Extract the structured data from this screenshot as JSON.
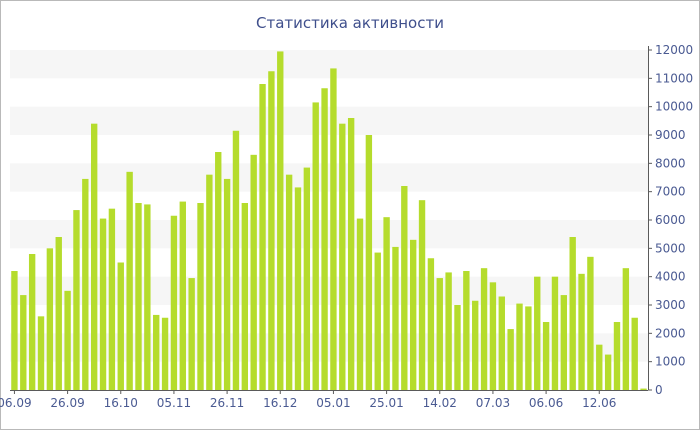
{
  "chart_data": {
    "type": "bar",
    "title": "Статистика активности",
    "xlabel": "",
    "ylabel": "",
    "ylim": [
      0,
      12000
    ],
    "y_ticks": [
      0,
      1000,
      2000,
      3000,
      4000,
      5000,
      6000,
      7000,
      8000,
      9000,
      10000,
      11000,
      12000
    ],
    "y_axis_side": "right",
    "grid": "alternating horizontal bands",
    "bar_color": "#b5dc2c",
    "band_color": "#f6f6f6",
    "text_color": "#4a5a92",
    "x_tick_labels": [
      {
        "index": 0,
        "label": "06.09"
      },
      {
        "index": 6,
        "label": "26.09"
      },
      {
        "index": 12,
        "label": "16.10"
      },
      {
        "index": 18,
        "label": "05.11"
      },
      {
        "index": 24,
        "label": "26.11"
      },
      {
        "index": 30,
        "label": "16.12"
      },
      {
        "index": 36,
        "label": "05.01"
      },
      {
        "index": 42,
        "label": "25.01"
      },
      {
        "index": 48,
        "label": "14.02"
      },
      {
        "index": 54,
        "label": "07.03"
      },
      {
        "index": 60,
        "label": "06.06"
      },
      {
        "index": 66,
        "label": "12.06"
      }
    ],
    "values": [
      4200,
      3350,
      4800,
      2600,
      5000,
      5400,
      3500,
      6350,
      7450,
      9400,
      6050,
      6400,
      4500,
      7700,
      6600,
      6550,
      2650,
      2550,
      6150,
      6650,
      3950,
      6600,
      7600,
      8400,
      7450,
      9150,
      6600,
      8300,
      10800,
      11250,
      11950,
      7600,
      7150,
      7850,
      10150,
      10650,
      11350,
      9400,
      9600,
      6050,
      9000,
      4850,
      6100,
      5050,
      7200,
      5300,
      6700,
      4650,
      3950,
      4150,
      3000,
      4200,
      3150,
      4300,
      3800,
      3300,
      2150,
      3050,
      2950,
      4000,
      2400,
      4000,
      3350,
      5400,
      4100,
      4700,
      1600,
      1250,
      2400,
      4300,
      2550,
      50
    ]
  }
}
